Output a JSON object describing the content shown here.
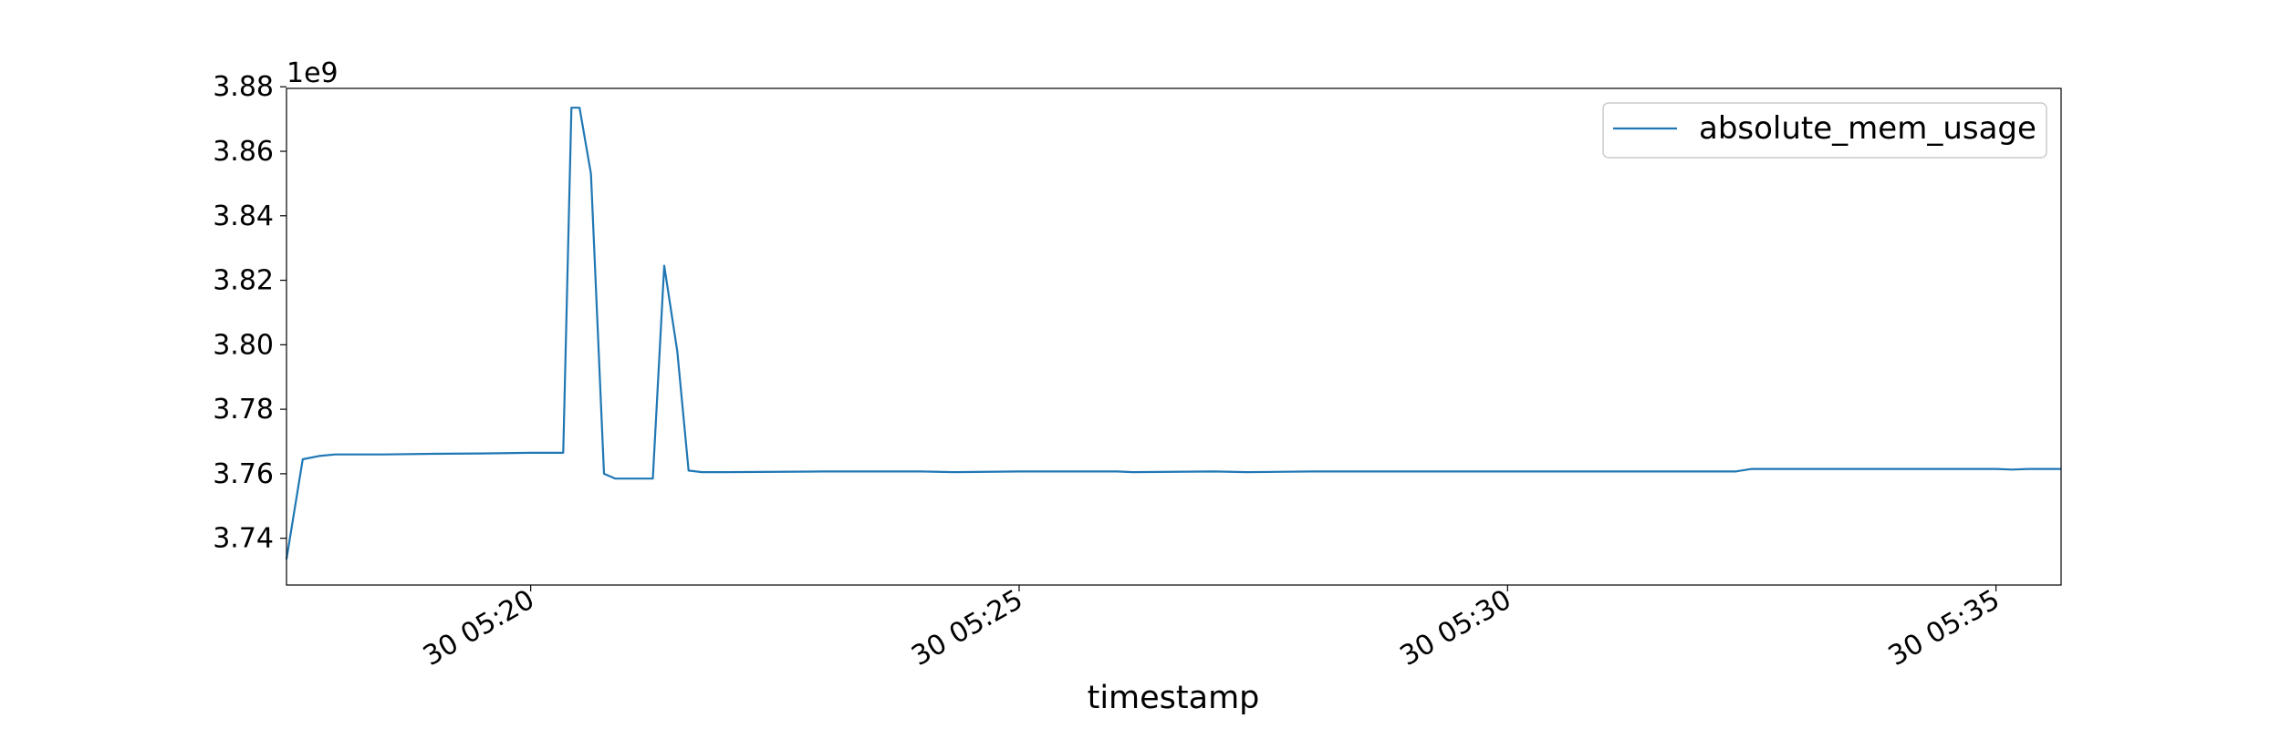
{
  "chart_data": {
    "type": "line",
    "title": "",
    "xlabel": "timestamp",
    "ylabel": "",
    "y_offset_label": "1e9",
    "y_scale": 1000000000,
    "ylim": [
      3.7255,
      3.8795
    ],
    "xlim": [
      "30 05:17:30",
      "30 05:35:40"
    ],
    "x_tick_labels": [
      "30 05:20",
      "30 05:25",
      "30 05:30",
      "30 05:35"
    ],
    "x_ticks": [
      "30 05:20:00",
      "30 05:25:00",
      "30 05:30:00",
      "30 05:35:00"
    ],
    "y_ticks": [
      3.74,
      3.76,
      3.78,
      3.8,
      3.82,
      3.84,
      3.86,
      3.88
    ],
    "y_tick_labels": [
      "3.74",
      "3.76",
      "3.78",
      "3.80",
      "3.82",
      "3.84",
      "3.86",
      "3.88"
    ],
    "legend": {
      "placement": "upper-right",
      "entries": [
        "absolute_mem_usage"
      ]
    },
    "grid": false,
    "series": [
      {
        "name": "absolute_mem_usage",
        "color": "#1f77b4",
        "x": [
          "30 05:17:30",
          "30 05:17:40",
          "30 05:17:50",
          "30 05:18:00",
          "30 05:18:30",
          "30 05:19:00",
          "30 05:19:30",
          "30 05:20:00",
          "30 05:20:20",
          "30 05:20:25",
          "30 05:20:30",
          "30 05:20:37",
          "30 05:20:45",
          "30 05:20:52",
          "30 05:21:00",
          "30 05:21:15",
          "30 05:21:22",
          "30 05:21:30",
          "30 05:21:37",
          "30 05:21:45",
          "30 05:21:52",
          "30 05:22:00",
          "30 05:23:00",
          "30 05:24:00",
          "30 05:24:20",
          "30 05:25:00",
          "30 05:26:00",
          "30 05:26:10",
          "30 05:27:00",
          "30 05:27:20",
          "30 05:28:00",
          "30 05:29:00",
          "30 05:30:00",
          "30 05:31:00",
          "30 05:32:00",
          "30 05:32:20",
          "30 05:32:30",
          "30 05:33:00",
          "30 05:34:00",
          "30 05:35:00",
          "30 05:35:10",
          "30 05:35:20",
          "30 05:35:40"
        ],
        "y": [
          3.7335,
          3.7645,
          3.7655,
          3.766,
          3.766,
          3.7662,
          3.7663,
          3.7665,
          3.7665,
          3.8735,
          3.8735,
          3.853,
          3.76,
          3.7585,
          3.7585,
          3.7585,
          3.8245,
          3.798,
          3.761,
          3.7605,
          3.7605,
          3.7605,
          3.7607,
          3.7607,
          3.7605,
          3.7607,
          3.7607,
          3.7605,
          3.7607,
          3.7605,
          3.7607,
          3.7607,
          3.7607,
          3.7607,
          3.7607,
          3.7607,
          3.7615,
          3.7615,
          3.7615,
          3.7615,
          3.7613,
          3.7615,
          3.7615
        ]
      }
    ]
  }
}
